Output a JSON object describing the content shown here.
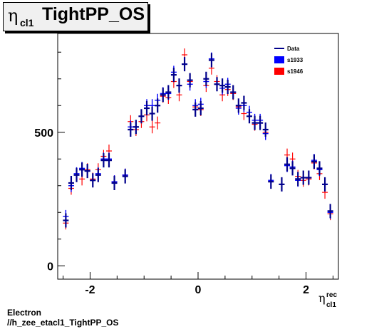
{
  "title": {
    "symbol": "η",
    "subscript": "cl1",
    "text": "TightPP_OS"
  },
  "footer": {
    "line1": "Electron",
    "line2": "//h_zee_etacl1_TightPP_OS"
  },
  "colors": {
    "data": "#00008b",
    "s1933": "#0000ff",
    "s1946": "#ff0000"
  },
  "chart_data": {
    "type": "scatter",
    "title": "η cl1 TightPP_OS",
    "xlabel": "η rec cl1",
    "xlabel_parts": {
      "symbol": "η",
      "sup": "rec",
      "sub": "cl1"
    },
    "ylabel": "",
    "xlim": [
      -2.6,
      2.6
    ],
    "ylim": [
      -50,
      870
    ],
    "xticks": [
      -2,
      0,
      2
    ],
    "yticks": [
      0,
      500
    ],
    "grid": false,
    "legend_position": "top-right",
    "legend": [
      {
        "label": "Data",
        "style": "line",
        "color": "#00008b"
      },
      {
        "label": "s1933",
        "style": "box",
        "color": "#0000ff"
      },
      {
        "label": "s1946",
        "style": "box",
        "color": "#ff0000"
      }
    ],
    "x": [
      -2.45,
      -2.35,
      -2.25,
      -2.15,
      -2.05,
      -1.95,
      -1.85,
      -1.75,
      -1.65,
      -1.55,
      -1.35,
      -1.25,
      -1.15,
      -1.05,
      -0.95,
      -0.85,
      -0.75,
      -0.65,
      -0.55,
      -0.45,
      -0.35,
      -0.25,
      -0.15,
      -0.05,
      0.05,
      0.15,
      0.25,
      0.35,
      0.45,
      0.55,
      0.65,
      0.75,
      0.85,
      0.95,
      1.05,
      1.15,
      1.25,
      1.35,
      1.55,
      1.65,
      1.75,
      1.85,
      1.95,
      2.05,
      2.15,
      2.25,
      2.35,
      2.45
    ],
    "series": [
      {
        "name": "Data",
        "values": [
          170,
          310,
          340,
          360,
          355,
          320,
          340,
          395,
          395,
          310,
          335,
          510,
          520,
          560,
          590,
          570,
          600,
          640,
          650,
          715,
          675,
          755,
          695,
          585,
          590,
          700,
          770,
          680,
          675,
          670,
          650,
          600,
          610,
          560,
          535,
          535,
          510,
          315,
          305,
          380,
          365,
          325,
          330,
          330,
          390,
          365,
          305,
          205
        ]
      },
      {
        "name": "s1933",
        "values": [
          185,
          300,
          345,
          365,
          355,
          320,
          345,
          400,
          400,
          315,
          340,
          520,
          520,
          560,
          600,
          600,
          620,
          645,
          645,
          725,
          675,
          755,
          680,
          600,
          605,
          690,
          775,
          680,
          665,
          680,
          650,
          590,
          600,
          575,
          545,
          545,
          495,
          320,
          305,
          375,
          370,
          320,
          330,
          330,
          395,
          360,
          305,
          200
        ]
      },
      {
        "name": "s1946",
        "values": [
          160,
          290,
          340,
          325,
          360,
          325,
          360,
          410,
          430,
          315,
          340,
          540,
          510,
          540,
          565,
          520,
          535,
          635,
          630,
          690,
          640,
          790,
          690,
          595,
          585,
          675,
          740,
          690,
          640,
          660,
          645,
          595,
          570,
          560,
          530,
          535,
          500,
          315,
          305,
          415,
          400,
          335,
          320,
          325,
          385,
          345,
          275,
          195
        ]
      }
    ]
  }
}
